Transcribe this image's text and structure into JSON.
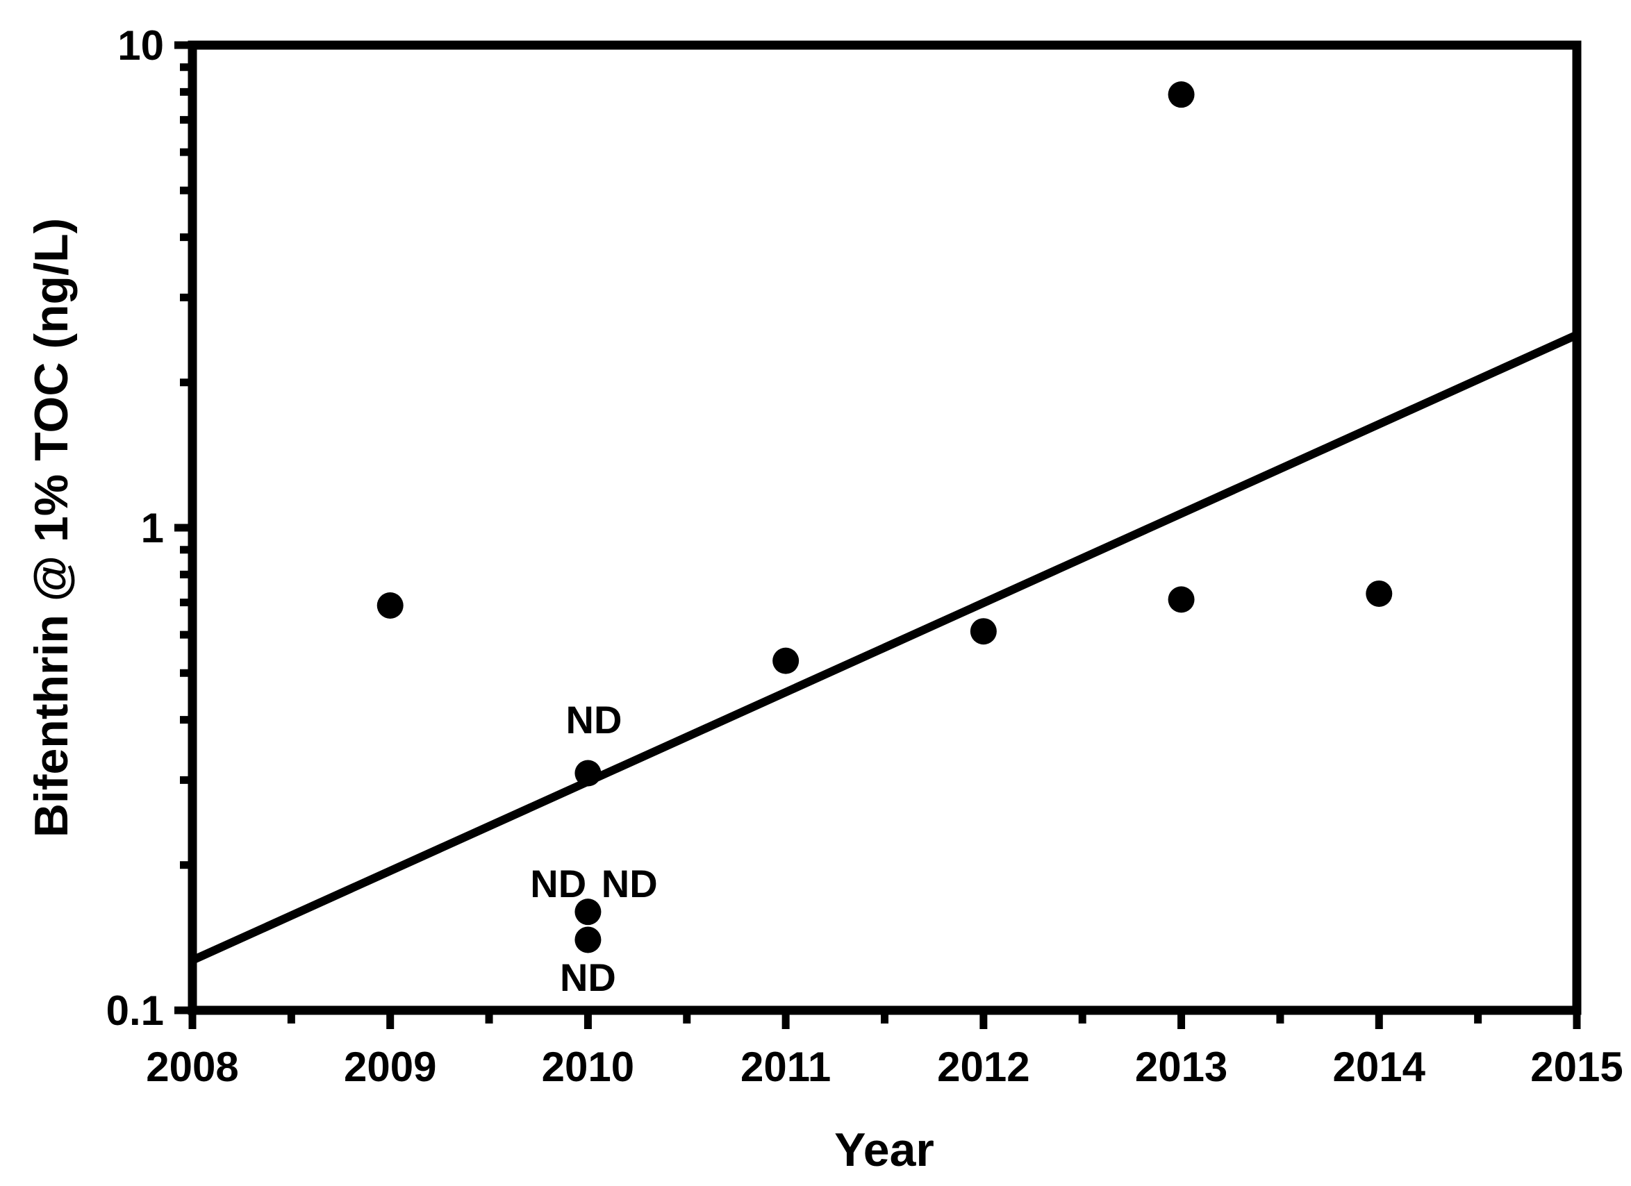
{
  "figure": {
    "background": "#ffffff",
    "foreground": "#000000"
  },
  "chart_data": {
    "type": "scatter",
    "title": "",
    "xlabel": "Year",
    "ylabel": "Bifenthrin @ 1% TOC (ng/L)",
    "grid": false,
    "legend": null,
    "x_axis": {
      "min": 2008,
      "max": 2015,
      "major_ticks": [
        2008,
        2009,
        2010,
        2011,
        2012,
        2013,
        2014,
        2015
      ],
      "tick_labels": [
        "2008",
        "2009",
        "2010",
        "2011",
        "2012",
        "2013",
        "2014",
        "2015"
      ],
      "minor_tick_step": 0.5
    },
    "y_axis": {
      "scale": "log",
      "min": 0.1,
      "max": 10,
      "major_ticks": [
        0.1,
        1,
        10
      ],
      "tick_labels": [
        "0.1",
        "1",
        "10"
      ],
      "minor_tick_multiples": [
        2,
        3,
        4,
        5,
        6,
        7,
        8,
        9
      ]
    },
    "series": [
      {
        "name": "Bifenthrin @ 1% TOC",
        "marker": "circle",
        "color": "#000000",
        "points": [
          {
            "x": 2009,
            "y": 0.69
          },
          {
            "x": 2010,
            "y": 0.31,
            "note": "ND"
          },
          {
            "x": 2010,
            "y": 0.16,
            "note": "ND"
          },
          {
            "x": 2010,
            "y": 0.14,
            "note": "ND"
          },
          {
            "x": 2011,
            "y": 0.53
          },
          {
            "x": 2012,
            "y": 0.61
          },
          {
            "x": 2013,
            "y": 7.9
          },
          {
            "x": 2013,
            "y": 0.71
          },
          {
            "x": 2014,
            "y": 0.73
          }
        ]
      }
    ],
    "annotations": [
      {
        "text": "ND",
        "x": 2010.03,
        "y": 0.4
      },
      {
        "text": "ND",
        "x": 2009.85,
        "y": 0.183
      },
      {
        "text": "ND",
        "x": 2010.21,
        "y": 0.183
      },
      {
        "text": "ND",
        "x": 2010.0,
        "y": 0.117
      }
    ],
    "trendline": {
      "x1": 2008,
      "y1": 0.127,
      "x2": 2015,
      "y2": 2.51,
      "color": "#000000"
    }
  }
}
